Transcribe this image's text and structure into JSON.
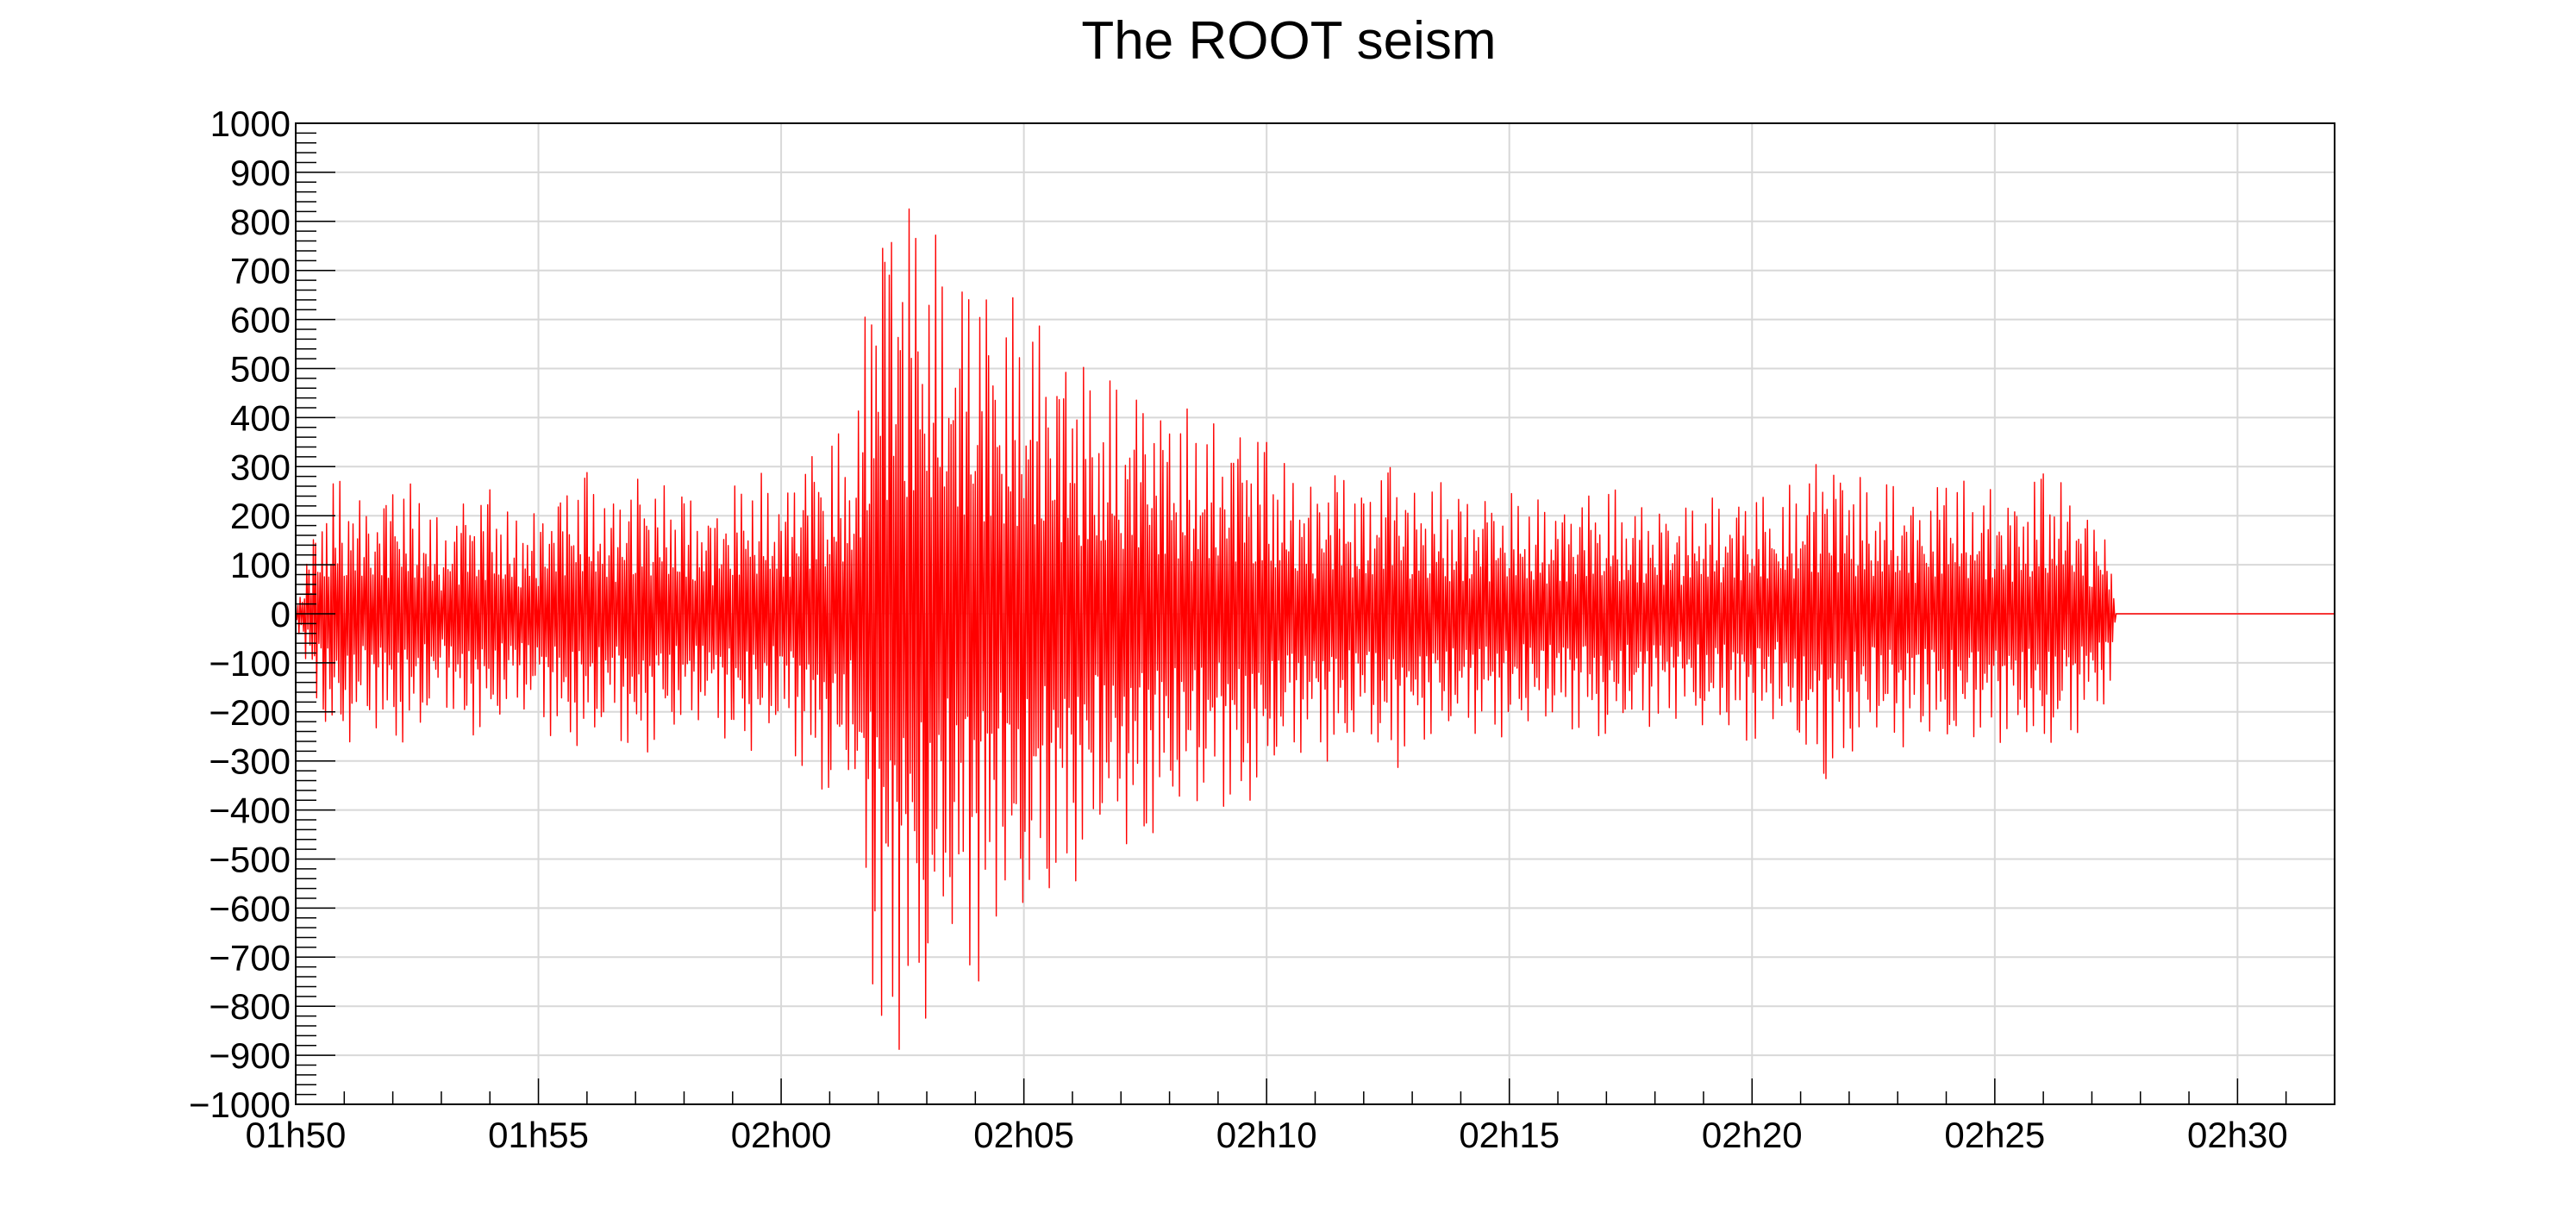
{
  "chart_data": {
    "type": "line",
    "title": "The ROOT seism",
    "xlabel": "",
    "ylabel": "",
    "time_unit": "minutes after 01h50",
    "xlim": [
      0,
      42
    ],
    "ylim": [
      -1000,
      1000
    ],
    "grid": true,
    "legend": "none",
    "x_ticks": [
      {
        "v": 0,
        "label": "01h50"
      },
      {
        "v": 5,
        "label": "01h55"
      },
      {
        "v": 10,
        "label": "02h00"
      },
      {
        "v": 15,
        "label": "02h05"
      },
      {
        "v": 20,
        "label": "02h10"
      },
      {
        "v": 25,
        "label": "02h15"
      },
      {
        "v": 30,
        "label": "02h20"
      },
      {
        "v": 35,
        "label": "02h25"
      },
      {
        "v": 40,
        "label": "02h30"
      }
    ],
    "y_ticks": [
      {
        "v": 1000,
        "label": "1000"
      },
      {
        "v": 900,
        "label": "900"
      },
      {
        "v": 800,
        "label": "800"
      },
      {
        "v": 700,
        "label": "700"
      },
      {
        "v": 600,
        "label": "600"
      },
      {
        "v": 500,
        "label": "500"
      },
      {
        "v": 400,
        "label": "400"
      },
      {
        "v": 300,
        "label": "300"
      },
      {
        "v": 200,
        "label": "200"
      },
      {
        "v": 100,
        "label": "100"
      },
      {
        "v": 0,
        "label": "0"
      },
      {
        "v": -100,
        "label": "−100"
      },
      {
        "v": -200,
        "label": "−200"
      },
      {
        "v": -300,
        "label": "−300"
      },
      {
        "v": -400,
        "label": "−400"
      },
      {
        "v": -500,
        "label": "−500"
      },
      {
        "v": -600,
        "label": "−600"
      },
      {
        "v": -700,
        "label": "−700"
      },
      {
        "v": -800,
        "label": "−800"
      },
      {
        "v": -900,
        "label": "−900"
      },
      {
        "v": -1000,
        "label": "−1000"
      }
    ],
    "series": [
      {
        "color": "#ff0000",
        "fill": "#ffaaaa",
        "x": [
          0,
          0.5,
          1,
          1.5,
          2,
          2.5,
          3,
          3.5,
          4,
          4.5,
          5,
          5.5,
          6,
          6.5,
          7,
          7.5,
          8,
          8.5,
          9,
          9.5,
          10,
          10.5,
          11,
          11.5,
          12,
          12.5,
          13,
          13.5,
          14,
          14.5,
          15,
          15.5,
          16,
          16.5,
          17,
          17.5,
          18,
          18.5,
          19,
          19.5,
          20,
          20.5,
          21,
          21.5,
          22,
          22.5,
          23,
          23.5,
          24,
          24.5,
          25,
          25.5,
          26,
          26.5,
          27,
          27.5,
          28,
          28.5,
          29,
          29.5,
          30,
          30.5,
          31,
          31.5,
          32,
          32.5,
          33,
          33.5,
          34,
          34.5,
          35,
          35.5,
          36,
          36.5,
          37,
          37.4,
          37.5,
          42
        ],
        "y": [
          10,
          240,
          -300,
          210,
          -290,
          270,
          -180,
          250,
          -260,
          200,
          -220,
          280,
          -290,
          240,
          -310,
          270,
          -250,
          220,
          -270,
          300,
          -240,
          350,
          -380,
          360,
          -950,
          880,
          -860,
          650,
          -800,
          620,
          -680,
          560,
          -590,
          480,
          -490,
          470,
          -430,
          420,
          -390,
          420,
          -360,
          300,
          -280,
          330,
          -230,
          360,
          -260,
          280,
          -240,
          260,
          -250,
          240,
          -230,
          250,
          -270,
          230,
          -240,
          210,
          -250,
          230,
          -280,
          220,
          -300,
          340,
          -320,
          250,
          -290,
          230,
          -300,
          260,
          -270,
          250,
          -300,
          270,
          -210,
          180,
          0,
          0
        ]
      }
    ]
  }
}
